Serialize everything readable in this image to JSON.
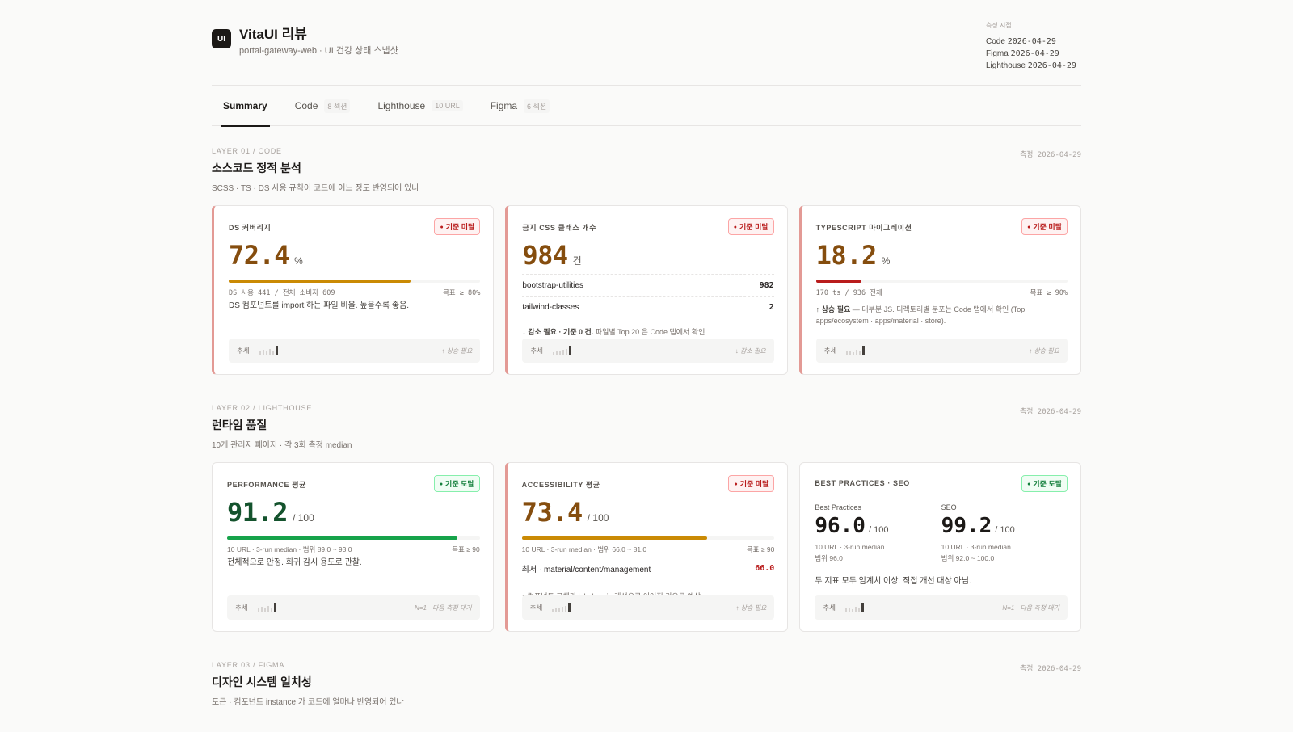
{
  "header": {
    "logo": "UI",
    "title": "VitaUI 리뷰",
    "subtitle": "portal-gateway-web · UI 건강 상태 스냅샷",
    "measure_label": "측정 시점",
    "measures": [
      {
        "name": "Code",
        "date": "2026-04-29"
      },
      {
        "name": "Figma",
        "date": "2026-04-29"
      },
      {
        "name": "Lighthouse",
        "date": "2026-04-29"
      }
    ]
  },
  "tabs": [
    {
      "label": "Summary",
      "badge": ""
    },
    {
      "label": "Code",
      "badge": "8 섹션"
    },
    {
      "label": "Lighthouse",
      "badge": "10 URL"
    },
    {
      "label": "Figma",
      "badge": "6 섹션"
    }
  ],
  "colors": {
    "warn_bar": "#ca8a04",
    "ok_bar": "#16a34a",
    "fail_bar": "#b91c1c",
    "fail_border": "#e39a95"
  },
  "sections": {
    "code": {
      "layer": "LAYER 01 / CODE",
      "title": "소스코드 정적 분석",
      "desc": "SCSS · TS · DS 사용 규칙이 코드에 어느 정도 반영되어 있나",
      "date": "측정 2026-04-29",
      "cards": {
        "ds": {
          "label": "DS 커버리지",
          "badge": "기준 미달",
          "value": "72.4",
          "unit": "%",
          "progress": 72.4,
          "meta_left": "DS 사용 441 / 전체 소비자 609",
          "meta_right": "목표 ≥ 80%",
          "note": "DS 컴포넌트를 import 하는 파일 비율. 높을수록 좋음.",
          "trend_label": "추세",
          "trend_note": "↑ 상승 필요"
        },
        "css": {
          "label": "금지 CSS 클래스 개수",
          "badge": "기준 미달",
          "value": "984",
          "unit": "건",
          "rows": [
            {
              "name": "bootstrap-utilities",
              "value": "982"
            },
            {
              "name": "tailwind-classes",
              "value": "2"
            }
          ],
          "hint_strong": "↓ 감소 필요 · 기준 0 건.",
          "hint_rest": " 파일별 Top 20 은 Code 탭에서 확인.",
          "trend_label": "추세",
          "trend_note": "↓ 감소 필요"
        },
        "ts": {
          "label": "TYPESCRIPT 마이그레이션",
          "badge": "기준 미달",
          "value": "18.2",
          "unit": "%",
          "progress": 18.2,
          "meta_left": "170 ts / 936 전체",
          "meta_right": "목표 ≥ 90%",
          "note_strong": "↑ 상승 필요",
          "note_rest": " — 대부분 JS. 디렉토리별 분포는 Code 탭에서 확인 (Top: apps/ecosystem · apps/material · store).",
          "trend_label": "추세",
          "trend_note": "↑ 상승 필요"
        }
      }
    },
    "lighthouse": {
      "layer": "LAYER 02 / LIGHTHOUSE",
      "title": "런타임 품질",
      "desc": "10개 관리자 페이지 · 각 3회 측정 median",
      "date": "측정 2026-04-29",
      "cards": {
        "perf": {
          "label": "PERFORMANCE 평균",
          "badge": "기준 도달",
          "value": "91.2",
          "unit": "/ 100",
          "progress": 91.2,
          "meta_left": "10 URL · 3-run median · 범위 89.0 ~ 93.0",
          "meta_right": "목표 ≥ 90",
          "note": "전체적으로 안정. 회귀 감시 용도로 관찰.",
          "trend_label": "추세",
          "trend_note": "N=1 · 다음 측정 대기"
        },
        "a11y": {
          "label": "ACCESSIBILITY 평균",
          "badge": "기준 미달",
          "value": "73.4",
          "unit": "/ 100",
          "progress": 73.4,
          "meta_left": "10 URL · 3-run median · 범위 66.0 ~ 81.0",
          "meta_right": "목표 ≥ 90",
          "rows": [
            {
              "name": "최저 · material/content/management",
              "value": "66.0"
            }
          ],
          "hint": "↑ 컴포넌트 교체가 label · aria 개선으로 이어질 것으로 예상.",
          "trend_label": "추세",
          "trend_note": "↑ 상승 필요"
        },
        "bp": {
          "label": "BEST PRACTICES · SEO",
          "badge": "기준 도달",
          "cols": [
            {
              "label": "Best Practices",
              "value": "96.0",
              "unit": "/ 100",
              "meta1": "10 URL · 3-run median",
              "meta2": "범위 96.0"
            },
            {
              "label": "SEO",
              "value": "99.2",
              "unit": "/ 100",
              "meta1": "10 URL · 3-run median",
              "meta2": "범위 92.0 ~ 100.0"
            }
          ],
          "note": "두 지표 모두 임계치 이상. 직접 개선 대상 아님.",
          "trend_label": "추세",
          "trend_note": "N=1 · 다음 측정 대기"
        }
      }
    },
    "figma": {
      "layer": "LAYER 03 / FIGMA",
      "title": "디자인 시스템 일치성",
      "desc": "토큰 · 컴포넌트 instance 가 코드에 얼마나 반영되어 있나",
      "date": "측정 2026-04-29"
    }
  }
}
